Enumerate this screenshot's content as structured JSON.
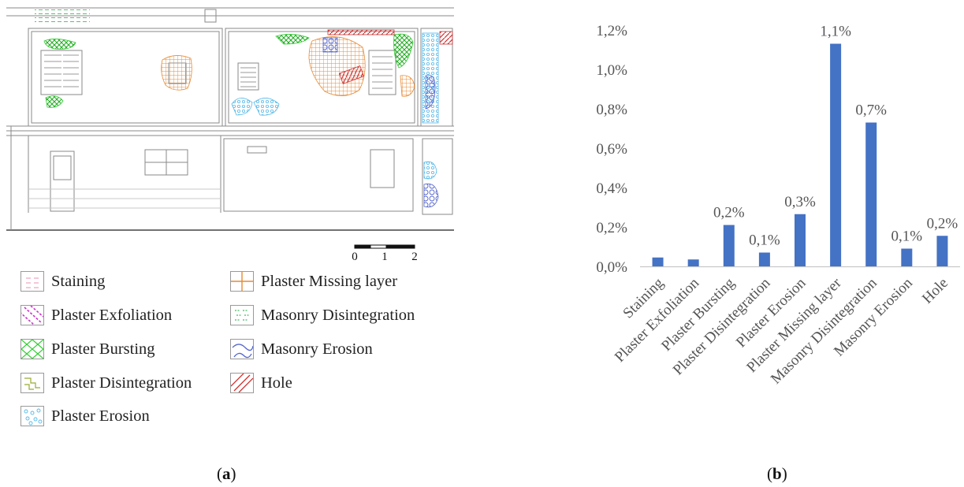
{
  "panel_a": {
    "caption": "a",
    "scale": {
      "ticks": [
        "0",
        "1",
        "2"
      ]
    },
    "legend": [
      {
        "label": "Staining",
        "icon": "staining-swatch-icon",
        "color": "#e88fb6",
        "column": 0,
        "row": 0
      },
      {
        "label": "Plaster Exfoliation",
        "icon": "exfoliation-swatch-icon",
        "color": "#cc33cc",
        "column": 0,
        "row": 1
      },
      {
        "label": "Plaster Bursting",
        "icon": "bursting-swatch-icon",
        "color": "#33cc33",
        "column": 0,
        "row": 2
      },
      {
        "label": "Plaster Disintegration",
        "icon": "disintegration-swatch-icon",
        "color": "#9aaa33",
        "column": 0,
        "row": 3
      },
      {
        "label": "Plaster Erosion",
        "icon": "erosion-swatch-icon",
        "color": "#55b8e8",
        "column": 0,
        "row": 4
      },
      {
        "label": "Plaster Missing layer",
        "icon": "missing-layer-swatch-icon",
        "color": "#e88a33",
        "column": 1,
        "row": 0
      },
      {
        "label": "Masonry Disintegration",
        "icon": "masonry-disintegration-swatch-icon",
        "color": "#44bb66",
        "column": 1,
        "row": 1
      },
      {
        "label": "Masonry Erosion",
        "icon": "masonry-erosion-swatch-icon",
        "color": "#5566cc",
        "column": 1,
        "row": 2
      },
      {
        "label": "Hole",
        "icon": "hole-swatch-icon",
        "color": "#cc3333",
        "column": 1,
        "row": 3
      }
    ]
  },
  "panel_b": {
    "caption": "b"
  },
  "chart_data": {
    "type": "bar",
    "categories": [
      "Staining",
      "Plaster Exfoliation",
      "Plaster Bursting",
      "Plaster Disintegration",
      "Plaster Erosion",
      "Plaster Missing layer",
      "Masonry Disintegration",
      "Masonry Erosion",
      "Hole"
    ],
    "values": [
      0.045,
      0.035,
      0.21,
      0.07,
      0.265,
      1.13,
      0.73,
      0.09,
      0.155
    ],
    "data_labels": [
      "",
      "",
      "0,2%",
      "0,1%",
      "0,3%",
      "1,1%",
      "0,7%",
      "0,1%",
      "0,2%"
    ],
    "yticks": [
      "0,0%",
      "0,2%",
      "0,4%",
      "0,6%",
      "0,8%",
      "1,0%",
      "1,2%"
    ],
    "ylim": [
      0,
      1.2
    ],
    "unit": "%",
    "title": "",
    "xlabel": "",
    "ylabel": "",
    "bar_color": "#4472c4",
    "grid": false,
    "legend": "none"
  }
}
